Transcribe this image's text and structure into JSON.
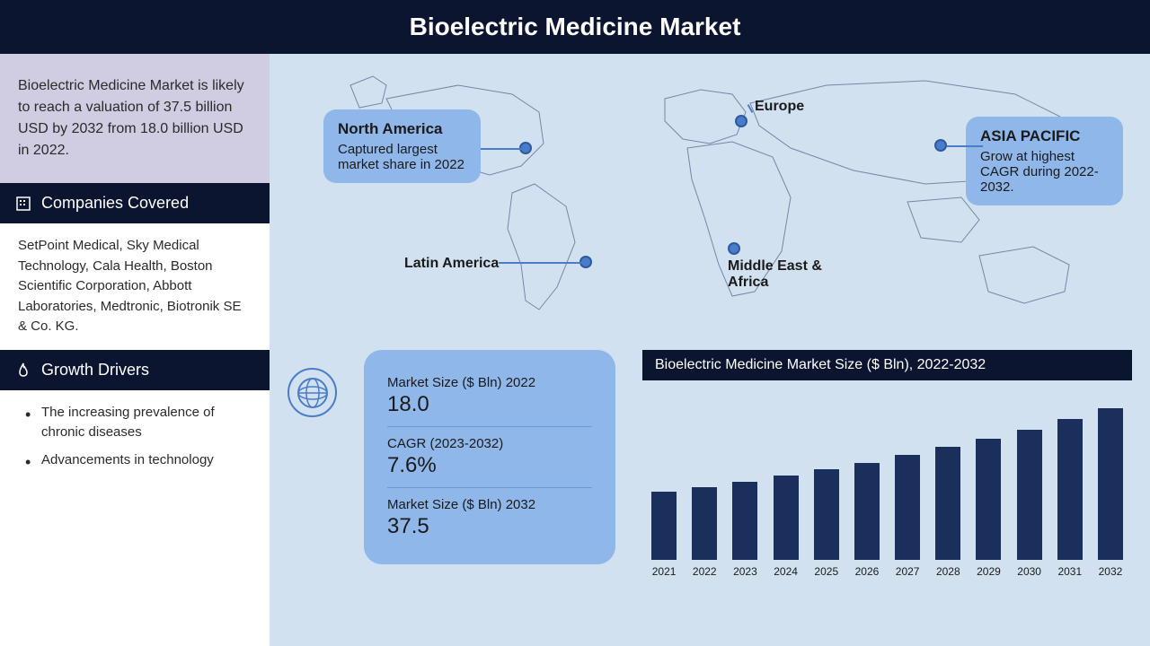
{
  "header": {
    "title": "Bioelectric Medicine Market"
  },
  "sidebar": {
    "intro": "Bioelectric Medicine Market is likely to reach a valuation of 37.5 billion USD by 2032 from 18.0 billion USD in 2022.",
    "companies": {
      "title": "Companies Covered",
      "body": "SetPoint Medical, Sky Medical Technology, Cala Health, Boston Scientific Corporation, Abbott Laboratories, Medtronic, Biotronik SE & Co. KG."
    },
    "drivers": {
      "title": "Growth Drivers",
      "items": [
        "The increasing prevalence of chronic diseases",
        "Advancements in technology"
      ]
    }
  },
  "map": {
    "regions": {
      "na": {
        "title": "North America",
        "desc": "Captured largest market share in 2022"
      },
      "la": {
        "label": "Latin America"
      },
      "eu": {
        "label": "Europe"
      },
      "mea": {
        "label": "Middle East & Africa"
      },
      "ap": {
        "title": "ASIA PACIFIC",
        "desc": "Grow at highest CAGR during 2022-2032."
      }
    },
    "outline_color": "#1a2f5c"
  },
  "stats": {
    "size2022": {
      "label": "Market Size ($ Bln) 2022",
      "value": "18.0"
    },
    "cagr": {
      "label": "CAGR (2023-2032)",
      "value": "7.6%"
    },
    "size2032": {
      "label": "Market Size ($ Bln) 2032",
      "value": "37.5"
    }
  },
  "chart": {
    "title": "Bioelectric Medicine Market Size ($ Bln), 2022-2032",
    "type": "bar",
    "bar_color": "#1a2f5c",
    "background_color": "#d2e1f0",
    "ylim": [
      0,
      40
    ],
    "categories": [
      "2021",
      "2022",
      "2023",
      "2024",
      "2025",
      "2026",
      "2027",
      "2028",
      "2029",
      "2030",
      "2031",
      "2032"
    ],
    "values": [
      17.0,
      18.0,
      19.4,
      20.8,
      22.4,
      24.1,
      26.0,
      27.9,
      30.1,
      32.3,
      34.8,
      37.5
    ]
  },
  "colors": {
    "header_bg": "#0c1530",
    "sidebar_intro_bg": "#d0cde3",
    "main_bg": "#d2e1f0",
    "callout_bg": "#8fb7ea",
    "pin_color": "#4a7dc9"
  }
}
